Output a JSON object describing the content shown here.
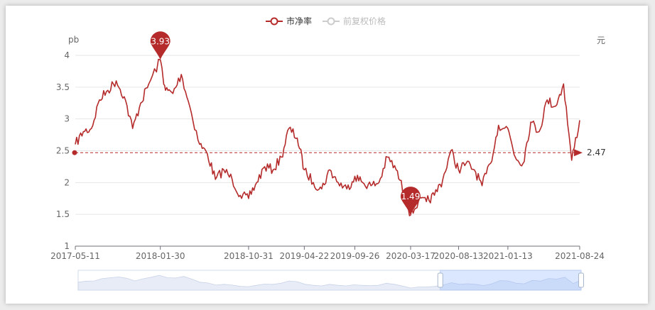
{
  "chart_data": {
    "type": "line",
    "title": "",
    "legend": [
      {
        "name": "市净率",
        "active": true,
        "color": "#b52b2b"
      },
      {
        "name": "前复权价格",
        "active": false,
        "color": "#cccccc"
      }
    ],
    "left_axis": {
      "name": "pb",
      "ylim": [
        1,
        4
      ],
      "ticks": [
        "1",
        "1.5",
        "2",
        "2.5",
        "3",
        "3.5",
        "4"
      ]
    },
    "right_axis": {
      "name": "元"
    },
    "x_tick_labels": [
      "2017-05-11",
      "2018-01-30",
      "2018-10-31",
      "2019-04-22",
      "2019-09-26",
      "2020-03-17",
      "2020-08-13",
      "2021-01-13",
      "2021-08-24"
    ],
    "series": [
      {
        "name": "市净率",
        "color": "#b52b2b",
        "x": [
          "2017-05-11",
          "2017-06-05",
          "2017-06-30",
          "2017-07-25",
          "2017-08-20",
          "2017-09-15",
          "2017-10-10",
          "2017-11-05",
          "2017-11-30",
          "2017-12-25",
          "2018-01-30",
          "2018-02-15",
          "2018-03-10",
          "2018-04-05",
          "2018-05-01",
          "2018-06-01",
          "2018-06-25",
          "2018-07-20",
          "2018-08-15",
          "2018-09-10",
          "2018-10-05",
          "2018-10-31",
          "2018-11-25",
          "2018-12-20",
          "2019-01-15",
          "2019-02-10",
          "2019-03-05",
          "2019-03-31",
          "2019-04-22",
          "2019-05-20",
          "2019-06-15",
          "2019-07-10",
          "2019-08-05",
          "2019-09-01",
          "2019-09-26",
          "2019-10-20",
          "2019-11-15",
          "2019-12-10",
          "2020-01-05",
          "2020-02-01",
          "2020-02-25",
          "2020-03-17",
          "2020-04-10",
          "2020-05-05",
          "2020-05-30",
          "2020-06-25",
          "2020-07-20",
          "2020-08-13",
          "2020-09-05",
          "2020-10-01",
          "2020-10-25",
          "2020-11-20",
          "2020-12-15",
          "2021-01-13",
          "2021-02-05",
          "2021-03-01",
          "2021-03-25",
          "2021-04-20",
          "2021-05-15",
          "2021-06-10",
          "2021-07-05",
          "2021-07-30",
          "2021-08-24"
        ],
        "values": [
          2.6,
          2.8,
          2.85,
          3.3,
          3.45,
          3.6,
          3.35,
          2.85,
          3.25,
          3.55,
          3.93,
          3.45,
          3.4,
          3.7,
          3.2,
          2.6,
          2.45,
          2.05,
          2.2,
          2.05,
          1.8,
          1.75,
          2.0,
          2.25,
          2.2,
          2.4,
          2.85,
          2.7,
          2.2,
          2.0,
          1.9,
          2.2,
          2.0,
          1.9,
          2.1,
          2.0,
          1.95,
          2.0,
          2.4,
          2.2,
          1.85,
          1.49,
          1.7,
          1.7,
          1.8,
          2.05,
          2.5,
          2.2,
          2.3,
          2.2,
          1.95,
          2.3,
          2.9,
          2.85,
          2.4,
          2.3,
          2.95,
          2.8,
          3.3,
          3.2,
          3.55,
          2.35,
          2.98
        ]
      }
    ],
    "markers": [
      {
        "type": "max",
        "label": "3.93",
        "date": "2018-01-30",
        "value": 3.93
      },
      {
        "type": "min",
        "label": "1.49",
        "date": "2020-03-17",
        "value": 1.49
      }
    ],
    "markline": {
      "type": "average",
      "label": "2.47",
      "value": 2.47
    },
    "grid": "horizontal",
    "data_zoom": {
      "visible": true,
      "range": [
        0.72,
        1.0
      ]
    }
  }
}
